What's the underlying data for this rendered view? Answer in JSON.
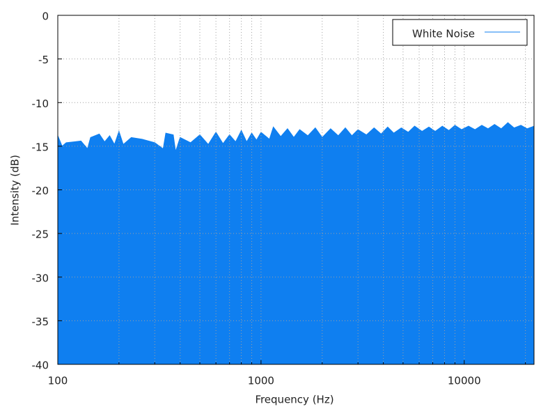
{
  "chart_data": {
    "type": "area",
    "log_x": true,
    "grid": true,
    "legend": "top-right",
    "xlabel": "Frequency (Hz)",
    "ylabel": "Intensity (dB)",
    "xlim": [
      100,
      22050
    ],
    "ylim": [
      -40,
      0
    ],
    "xticks": [
      100,
      1000,
      10000
    ],
    "xminor": [
      200,
      300,
      400,
      500,
      600,
      700,
      800,
      900,
      2000,
      3000,
      4000,
      5000,
      6000,
      7000,
      8000,
      9000,
      20000
    ],
    "yticks": [
      0,
      -5,
      -10,
      -15,
      -20,
      -25,
      -30,
      -35,
      -40
    ],
    "series": [
      {
        "name": "White Noise",
        "color": "#0f7ff0",
        "x": [
          100,
          105,
          110,
          120,
          130,
          140,
          145,
          160,
          170,
          180,
          190,
          200,
          210,
          230,
          260,
          300,
          330,
          340,
          370,
          380,
          400,
          450,
          500,
          550,
          600,
          650,
          700,
          750,
          800,
          850,
          900,
          950,
          1000,
          1100,
          1150,
          1250,
          1350,
          1450,
          1550,
          1700,
          1850,
          2000,
          2200,
          2400,
          2600,
          2800,
          3000,
          3300,
          3600,
          3900,
          4200,
          4500,
          4900,
          5300,
          5700,
          6200,
          6700,
          7200,
          7800,
          8400,
          9000,
          9700,
          10500,
          11300,
          12200,
          13100,
          14100,
          15200,
          16400,
          17600,
          19000,
          20400,
          22050
        ],
        "values": [
          -13.8,
          -15,
          -14.6,
          -14.5,
          -14.4,
          -15.3,
          -14,
          -13.6,
          -14.5,
          -13.8,
          -14.8,
          -13.3,
          -14.8,
          -14,
          -14.2,
          -14.6,
          -15.3,
          -13.5,
          -13.7,
          -15.6,
          -14,
          -14.6,
          -13.7,
          -14.8,
          -13.4,
          -14.7,
          -13.7,
          -14.5,
          -13.2,
          -14.5,
          -13.5,
          -14.3,
          -13.4,
          -14.2,
          -12.8,
          -13.9,
          -13,
          -14,
          -13.1,
          -13.8,
          -12.9,
          -14,
          -13,
          -13.8,
          -12.9,
          -13.8,
          -13.1,
          -13.7,
          -12.9,
          -13.6,
          -12.8,
          -13.5,
          -12.9,
          -13.4,
          -12.7,
          -13.3,
          -12.8,
          -13.3,
          -12.7,
          -13.2,
          -12.6,
          -13.1,
          -12.7,
          -13.1,
          -12.6,
          -13,
          -12.5,
          -13,
          -12.3,
          -12.9,
          -12.6,
          -13,
          -12.7
        ]
      }
    ]
  }
}
